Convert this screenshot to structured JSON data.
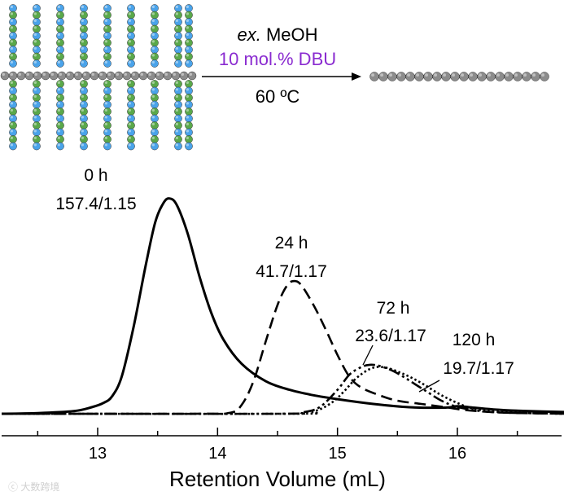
{
  "scheme": {
    "reagent_prefix": "ex.",
    "reagent": " MeOH",
    "catalyst": "10 mol.% DBU",
    "temperature": "60 ºC",
    "colors": {
      "bead_gray": "#8c8c8c",
      "bead_blue": "#4aa3ea",
      "bead_green": "#5aa84a",
      "catalyst_text": "#8a2bd0"
    }
  },
  "watermark": "ⓒ 大数跨境",
  "chart_data": {
    "type": "line",
    "title": "",
    "xlabel": "Retention Volume (mL)",
    "ylabel": "",
    "xlim": [
      12.2,
      16.9
    ],
    "ylim": [
      0,
      1.0
    ],
    "xticks": [
      13,
      14,
      15,
      16
    ],
    "series": [
      {
        "name": "0 h",
        "annotation": "157.4/1.15",
        "style": "solid",
        "points": [
          [
            12.2,
            0.0
          ],
          [
            12.5,
            0.003
          ],
          [
            12.8,
            0.012
          ],
          [
            12.95,
            0.03
          ],
          [
            13.05,
            0.05
          ],
          [
            13.12,
            0.08
          ],
          [
            13.2,
            0.17
          ],
          [
            13.3,
            0.4
          ],
          [
            13.4,
            0.68
          ],
          [
            13.48,
            0.88
          ],
          [
            13.55,
            0.97
          ],
          [
            13.6,
            0.99
          ],
          [
            13.66,
            0.96
          ],
          [
            13.75,
            0.83
          ],
          [
            13.85,
            0.63
          ],
          [
            13.95,
            0.46
          ],
          [
            14.05,
            0.34
          ],
          [
            14.2,
            0.23
          ],
          [
            14.4,
            0.15
          ],
          [
            14.6,
            0.11
          ],
          [
            14.8,
            0.085
          ],
          [
            15.0,
            0.067
          ],
          [
            15.3,
            0.045
          ],
          [
            15.6,
            0.03
          ],
          [
            15.9,
            0.028
          ],
          [
            16.0,
            0.035
          ],
          [
            16.1,
            0.03
          ],
          [
            16.3,
            0.02
          ],
          [
            16.6,
            0.012
          ],
          [
            16.9,
            0.008
          ]
        ]
      },
      {
        "name": "24 h",
        "annotation": "41.7/1.17",
        "style": "dashed",
        "points": [
          [
            12.2,
            0.0
          ],
          [
            13.8,
            0.0
          ],
          [
            14.1,
            0.004
          ],
          [
            14.2,
            0.04
          ],
          [
            14.3,
            0.15
          ],
          [
            14.4,
            0.33
          ],
          [
            14.5,
            0.5
          ],
          [
            14.58,
            0.59
          ],
          [
            14.64,
            0.61
          ],
          [
            14.7,
            0.59
          ],
          [
            14.8,
            0.5
          ],
          [
            14.9,
            0.39
          ],
          [
            15.0,
            0.27
          ],
          [
            15.1,
            0.17
          ],
          [
            15.2,
            0.12
          ],
          [
            15.35,
            0.085
          ],
          [
            15.5,
            0.06
          ],
          [
            15.7,
            0.045
          ],
          [
            15.9,
            0.03
          ],
          [
            16.1,
            0.015
          ],
          [
            16.4,
            0.005
          ],
          [
            16.9,
            0.0
          ]
        ]
      },
      {
        "name": "72 h",
        "annotation": "23.6/1.17",
        "style": "dash-dot",
        "points": [
          [
            12.2,
            0.0
          ],
          [
            14.5,
            0.0
          ],
          [
            14.7,
            0.006
          ],
          [
            14.85,
            0.03
          ],
          [
            15.0,
            0.11
          ],
          [
            15.1,
            0.18
          ],
          [
            15.2,
            0.215
          ],
          [
            15.27,
            0.225
          ],
          [
            15.35,
            0.22
          ],
          [
            15.45,
            0.2
          ],
          [
            15.55,
            0.17
          ],
          [
            15.65,
            0.135
          ],
          [
            15.75,
            0.1
          ],
          [
            15.85,
            0.065
          ],
          [
            15.95,
            0.04
          ],
          [
            16.05,
            0.025
          ],
          [
            16.2,
            0.012
          ],
          [
            16.4,
            0.005
          ],
          [
            16.9,
            0.0
          ]
        ]
      },
      {
        "name": "120 h",
        "annotation": "19.7/1.17",
        "style": "dotted",
        "points": [
          [
            12.2,
            0.0
          ],
          [
            14.6,
            0.0
          ],
          [
            14.8,
            0.01
          ],
          [
            14.95,
            0.05
          ],
          [
            15.05,
            0.1
          ],
          [
            15.15,
            0.16
          ],
          [
            15.25,
            0.2
          ],
          [
            15.33,
            0.215
          ],
          [
            15.42,
            0.21
          ],
          [
            15.52,
            0.19
          ],
          [
            15.62,
            0.165
          ],
          [
            15.72,
            0.135
          ],
          [
            15.82,
            0.1
          ],
          [
            15.92,
            0.07
          ],
          [
            16.02,
            0.045
          ],
          [
            16.12,
            0.025
          ],
          [
            16.3,
            0.01
          ],
          [
            16.6,
            0.003
          ],
          [
            16.9,
            0.0
          ]
        ]
      }
    ]
  }
}
